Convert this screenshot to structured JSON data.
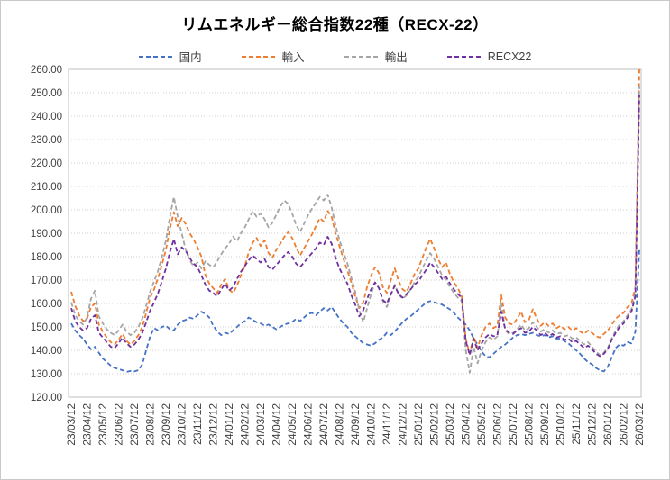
{
  "chart_data": {
    "type": "line",
    "title": "リムエネルギー総合指数22種（RECX-22）",
    "xlabel": "",
    "ylabel": "",
    "ylim": [
      120,
      260
    ],
    "y_ticks": [
      120,
      130,
      140,
      150,
      160,
      170,
      180,
      190,
      200,
      210,
      220,
      230,
      240,
      250,
      260
    ],
    "y_tick_format": "2-decimals",
    "grid": true,
    "legend_position": "top",
    "line_style": "dashed",
    "x_tick_labels": [
      "23/03/12",
      "23/04/12",
      "23/05/12",
      "23/06/12",
      "23/07/12",
      "23/08/12",
      "23/09/12",
      "23/10/12",
      "23/11/12",
      "23/12/12",
      "24/01/12",
      "24/02/12",
      "24/03/12",
      "24/04/12",
      "24/05/12",
      "24/06/12",
      "24/07/12",
      "24/08/12",
      "24/09/12",
      "24/10/12",
      "24/11/12",
      "24/12/12",
      "25/01/12",
      "25/02/12",
      "25/03/12",
      "25/04/12",
      "25/05/12",
      "25/06/12",
      "25/07/12",
      "25/08/12",
      "25/09/12",
      "25/10/12",
      "25/11/12",
      "25/12/12",
      "26/01/12",
      "26/02/12",
      "26/03/12"
    ],
    "points_per_month": 4,
    "series": [
      {
        "key": "domestic",
        "name": "国内",
        "color": "#4472C4",
        "values": [
          151.5,
          148.5,
          146.5,
          145,
          142.5,
          140.5,
          141.5,
          139,
          136.5,
          135,
          133.5,
          132.5,
          132,
          131.5,
          130.8,
          131.2,
          131,
          131.5,
          134,
          140,
          146,
          149.5,
          148.5,
          150,
          150.5,
          149,
          148.5,
          151,
          152.5,
          153,
          154,
          153.5,
          155,
          156.5,
          155.5,
          154,
          150.5,
          148,
          146.5,
          147.5,
          147,
          148.5,
          150,
          151.5,
          152.5,
          154,
          153,
          152,
          151.5,
          150.5,
          151,
          150,
          149,
          150,
          151,
          151.5,
          152,
          153.5,
          152.5,
          154,
          155.5,
          156,
          155,
          156.5,
          158,
          157,
          158.5,
          156,
          153.5,
          151.5,
          150,
          147.5,
          146,
          144.5,
          143,
          142.5,
          142,
          143,
          144.5,
          145.5,
          147.5,
          146.5,
          148,
          150,
          152,
          153.5,
          154.5,
          156,
          157.5,
          159,
          160.5,
          161,
          160.5,
          160,
          159.5,
          158.5,
          157.5,
          156,
          154,
          152.5,
          151,
          148.5,
          145,
          142.5,
          139.5,
          137.5,
          137,
          138.5,
          140,
          141.5,
          142.5,
          144,
          145.5,
          146.5,
          147,
          146.5,
          147,
          147.5,
          146.5,
          146,
          146.5,
          145.5,
          146,
          145,
          145,
          144,
          143,
          141.5,
          140,
          138.5,
          136.5,
          135,
          134,
          132.5,
          131.5,
          131,
          133,
          137,
          141,
          142.5,
          142,
          143.5,
          143,
          148,
          183
        ]
      },
      {
        "key": "import",
        "name": "輸入",
        "color": "#ED7D31",
        "values": [
          165,
          159,
          155,
          152.5,
          153.5,
          158.5,
          160,
          151,
          148,
          145.5,
          143.5,
          142.5,
          144.5,
          147,
          144,
          142.5,
          144,
          146.5,
          150,
          156,
          162.5,
          166,
          171,
          176.5,
          183,
          192,
          199,
          193,
          196.5,
          194,
          190,
          187.5,
          184,
          180,
          172,
          168.5,
          166.5,
          164.5,
          168,
          170.5,
          166,
          164.5,
          167.5,
          172,
          176,
          182,
          186,
          188,
          184.5,
          187,
          181.5,
          179.5,
          183,
          185.5,
          188.5,
          190.5,
          188,
          184,
          180.5,
          183.5,
          186.5,
          189.5,
          193,
          196.5,
          195,
          199.5,
          197,
          190,
          184.5,
          179,
          174,
          169,
          163,
          158,
          160.5,
          167,
          172,
          175.5,
          173,
          167,
          164.5,
          170,
          175,
          169.5,
          166,
          165,
          168.5,
          172.5,
          175,
          179.5,
          184,
          187.5,
          183.5,
          179,
          175.5,
          177.5,
          172.5,
          169,
          166.5,
          163,
          145,
          138.5,
          146,
          141,
          146.5,
          150,
          151.5,
          149.5,
          150.5,
          163.5,
          154,
          151.5,
          151,
          153.5,
          156.5,
          152,
          153,
          157.5,
          153.5,
          150.5,
          152,
          150.5,
          151.5,
          149.5,
          150.5,
          149,
          150,
          148.5,
          149.5,
          148,
          147,
          148.5,
          147.5,
          146,
          145.5,
          147,
          148.5,
          151,
          153.5,
          155,
          156,
          158.5,
          160,
          167,
          260
        ]
      },
      {
        "key": "export",
        "name": "輸出",
        "color": "#A5A5A5",
        "values": [
          160.5,
          155,
          152.5,
          151,
          154,
          162,
          165.5,
          154.5,
          151.5,
          149,
          147.5,
          146.5,
          148.5,
          151,
          148,
          146.5,
          147.5,
          150,
          153.5,
          159,
          165,
          169.5,
          174,
          180,
          187,
          197,
          205.5,
          197,
          190,
          183,
          178.5,
          176,
          177.5,
          175,
          178,
          176.5,
          175.5,
          178,
          181,
          183.5,
          185.5,
          188.5,
          186.5,
          190,
          192.5,
          196,
          199.5,
          197,
          198.5,
          196,
          192.5,
          194.5,
          198,
          201.5,
          204,
          202.5,
          198.5,
          193.5,
          190.5,
          194,
          197.5,
          200.5,
          203,
          205.5,
          204,
          206.5,
          201,
          193.5,
          187,
          182,
          177,
          171,
          165,
          157,
          152,
          158,
          164,
          169,
          166.5,
          161,
          158.5,
          163.5,
          168,
          164,
          162,
          163.5,
          166,
          169,
          171.5,
          175,
          178.5,
          181.5,
          179,
          175.5,
          172,
          170,
          167,
          164.5,
          162.5,
          161,
          140,
          130.5,
          141.5,
          134.5,
          140,
          143.5,
          145.5,
          144.5,
          146,
          160,
          148.5,
          147,
          147.5,
          149,
          151,
          148.5,
          149.5,
          152,
          150,
          148,
          149,
          147.5,
          148.5,
          147,
          147.5,
          146,
          146.5,
          145,
          145.5,
          144,
          142.5,
          143.5,
          141.5,
          139.5,
          138,
          139,
          141,
          145,
          148.5,
          151,
          152.5,
          155,
          157.5,
          165,
          253
        ]
      },
      {
        "key": "recx22",
        "name": "RECX22",
        "color": "#7030A0",
        "values": [
          158,
          152.5,
          150,
          148.5,
          149.5,
          153.5,
          155,
          147.5,
          145.5,
          143.5,
          141.5,
          141,
          143,
          145.5,
          143,
          141.5,
          142.5,
          144.5,
          147.5,
          152,
          157,
          160.5,
          164.5,
          169.5,
          175,
          182,
          187.5,
          181,
          184,
          182.5,
          179.5,
          177,
          175.5,
          172,
          168,
          165.5,
          164.5,
          163,
          166,
          168.5,
          165.5,
          167,
          170.5,
          173.5,
          176,
          178.5,
          180.5,
          179,
          177.5,
          179,
          175.5,
          174.5,
          176.5,
          178.5,
          180.5,
          182,
          180,
          177,
          175.5,
          177.5,
          179.5,
          181.5,
          183.5,
          186,
          185,
          188.5,
          185.5,
          179.5,
          175,
          171.5,
          168.5,
          163.5,
          159.5,
          154.5,
          157,
          162,
          166,
          169,
          166.5,
          161.5,
          160,
          164,
          167.5,
          164,
          162.5,
          164,
          166,
          168,
          169.5,
          172,
          174.5,
          177.5,
          175.5,
          173,
          170.5,
          171.5,
          168.5,
          166,
          164,
          162.5,
          144,
          138,
          145,
          140,
          143,
          145.5,
          147,
          146,
          146.5,
          156.5,
          149,
          147.5,
          147,
          148.5,
          149.5,
          147.5,
          148,
          150,
          148.5,
          146.5,
          147.5,
          146,
          147,
          145.5,
          146,
          144.5,
          145,
          143.5,
          144,
          142.5,
          141,
          142,
          140.5,
          138.5,
          137.5,
          138.5,
          140.5,
          144.5,
          147.5,
          150,
          151.5,
          154,
          156.5,
          163,
          249
        ]
      }
    ]
  }
}
